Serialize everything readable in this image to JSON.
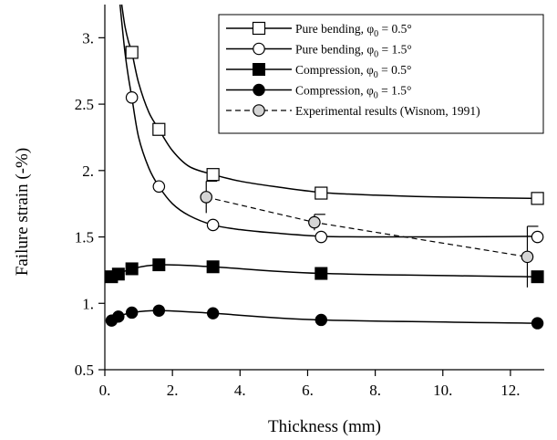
{
  "chart_data": {
    "type": "line",
    "xlabel": "Thickness (mm)",
    "ylabel": "Failure strain (-%)",
    "xlim": [
      0,
      13
    ],
    "ylim": [
      0.5,
      3.25
    ],
    "x_ticks": [
      0,
      2,
      4,
      6,
      8,
      10,
      12
    ],
    "x_tick_labels": [
      "0.",
      "2.",
      "4.",
      "6.",
      "8.",
      "10.",
      "12."
    ],
    "y_ticks": [
      0.5,
      1,
      1.5,
      2,
      2.5,
      3
    ],
    "y_tick_labels": [
      "0.5",
      "1.",
      "1.5",
      "2.",
      "2.5",
      "3."
    ],
    "grid": false,
    "legend_position": "top-right",
    "series": [
      {
        "name": "Pure bending, φ",
        "name_sub": "0",
        "name_suffix": " = 0.5°",
        "marker": "open-square",
        "line": "solid",
        "curve_x": [
          0.5,
          0.55,
          0.6,
          0.7,
          0.8,
          1.0,
          1.3,
          1.6,
          2.0,
          2.5,
          3.2,
          4.0,
          5.0,
          6.4,
          8.0,
          10.0,
          12.8
        ],
        "curve_y": [
          3.25,
          3.16,
          3.08,
          2.97,
          2.89,
          2.66,
          2.44,
          2.31,
          2.15,
          2.03,
          1.97,
          1.92,
          1.88,
          1.835,
          1.815,
          1.8,
          1.79
        ],
        "x": [
          0.8,
          1.6,
          3.2,
          6.4,
          12.8
        ],
        "y": [
          2.89,
          2.31,
          1.97,
          1.83,
          1.79
        ]
      },
      {
        "name": "Pure bending, φ",
        "name_sub": "0",
        "name_suffix": " = 1.5°",
        "marker": "open-circle",
        "line": "solid",
        "curve_x": [
          0.45,
          0.5,
          0.6,
          0.7,
          0.8,
          1.0,
          1.3,
          1.6,
          2.0,
          2.5,
          3.2,
          4.0,
          5.0,
          6.4,
          8.0,
          10.0,
          12.8
        ],
        "curve_y": [
          3.25,
          3.12,
          2.88,
          2.7,
          2.55,
          2.25,
          2.02,
          1.88,
          1.75,
          1.66,
          1.59,
          1.555,
          1.53,
          1.505,
          1.5,
          1.5,
          1.505
        ],
        "x": [
          0.8,
          1.6,
          3.2,
          6.4,
          12.8
        ],
        "y": [
          2.55,
          1.88,
          1.59,
          1.5,
          1.5
        ]
      },
      {
        "name": "Compression, φ",
        "name_sub": "0",
        "name_suffix": " = 0.5°",
        "marker": "filled-square",
        "line": "solid",
        "x": [
          0.2,
          0.4,
          0.8,
          1.6,
          3.2,
          6.4,
          12.8
        ],
        "y": [
          1.2,
          1.22,
          1.26,
          1.29,
          1.275,
          1.225,
          1.2
        ]
      },
      {
        "name": "Compression, φ",
        "name_sub": "0",
        "name_suffix": " = 1.5°",
        "marker": "filled-circle",
        "line": "solid",
        "x": [
          0.2,
          0.4,
          0.8,
          1.6,
          3.2,
          6.4,
          12.8
        ],
        "y": [
          0.87,
          0.9,
          0.93,
          0.945,
          0.925,
          0.875,
          0.85
        ]
      },
      {
        "name": "Experimental results (Wisnom, 1991)",
        "name_sub": "",
        "name_suffix": "",
        "marker": "grey-circle",
        "line": "dashed",
        "x": [
          3.0,
          6.2,
          12.5
        ],
        "y": [
          1.8,
          1.61,
          1.35
        ],
        "error_upper": [
          0.12,
          0.06,
          0.23
        ],
        "error_lower": [
          0.12,
          0.06,
          0.23
        ]
      }
    ]
  }
}
